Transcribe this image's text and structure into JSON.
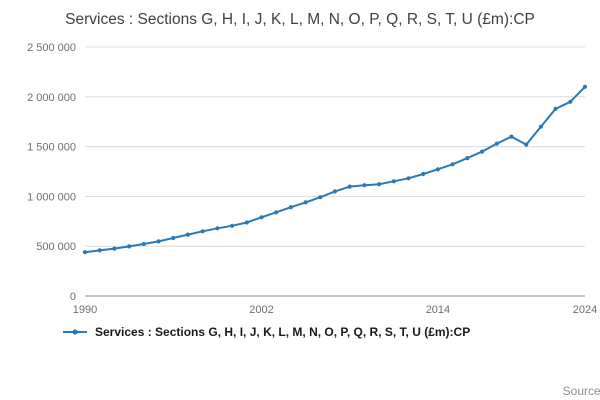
{
  "chart_data": {
    "type": "line",
    "title": "Services : Sections G, H, I, J, K, L, M, N, O, P, Q, R, S, T, U (£m):CP",
    "legend": "Services : Sections G, H, I, J, K, L, M, N, O, P, Q, R, S, T, U (£m):CP",
    "source_label": "Source:",
    "line_color": "#2a7ab9",
    "grid": "horizontal",
    "legend_position": "bottom-left",
    "xlim": [
      1990,
      2024
    ],
    "ylim": [
      0,
      2500000
    ],
    "x": [
      1990,
      1991,
      1992,
      1993,
      1994,
      1995,
      1996,
      1997,
      1998,
      1999,
      2000,
      2001,
      2002,
      2003,
      2004,
      2005,
      2006,
      2007,
      2008,
      2009,
      2010,
      2011,
      2012,
      2013,
      2014,
      2015,
      2016,
      2017,
      2018,
      2019,
      2020,
      2021,
      2022,
      2023,
      2024
    ],
    "values": [
      440000,
      458000,
      476000,
      498000,
      522000,
      548000,
      582000,
      616000,
      650000,
      680000,
      705000,
      738000,
      790000,
      840000,
      892000,
      940000,
      992000,
      1050000,
      1098000,
      1112000,
      1122000,
      1152000,
      1182000,
      1225000,
      1272000,
      1322000,
      1385000,
      1450000,
      1530000,
      1600000,
      1520000,
      1700000,
      1880000,
      1950000,
      2100000
    ],
    "yticks": [
      {
        "value": 0,
        "label": "0"
      },
      {
        "value": 500000,
        "label": "500 000"
      },
      {
        "value": 1000000,
        "label": "1 000 000"
      },
      {
        "value": 1500000,
        "label": "1 500 000"
      },
      {
        "value": 2000000,
        "label": "2 000 000"
      },
      {
        "value": 2500000,
        "label": "2 500 000"
      }
    ],
    "xticks": [
      {
        "value": 1990,
        "label": "1990"
      },
      {
        "value": 2002,
        "label": "2002"
      },
      {
        "value": 2014,
        "label": "2014"
      },
      {
        "value": 2024,
        "label": "2024"
      }
    ]
  }
}
